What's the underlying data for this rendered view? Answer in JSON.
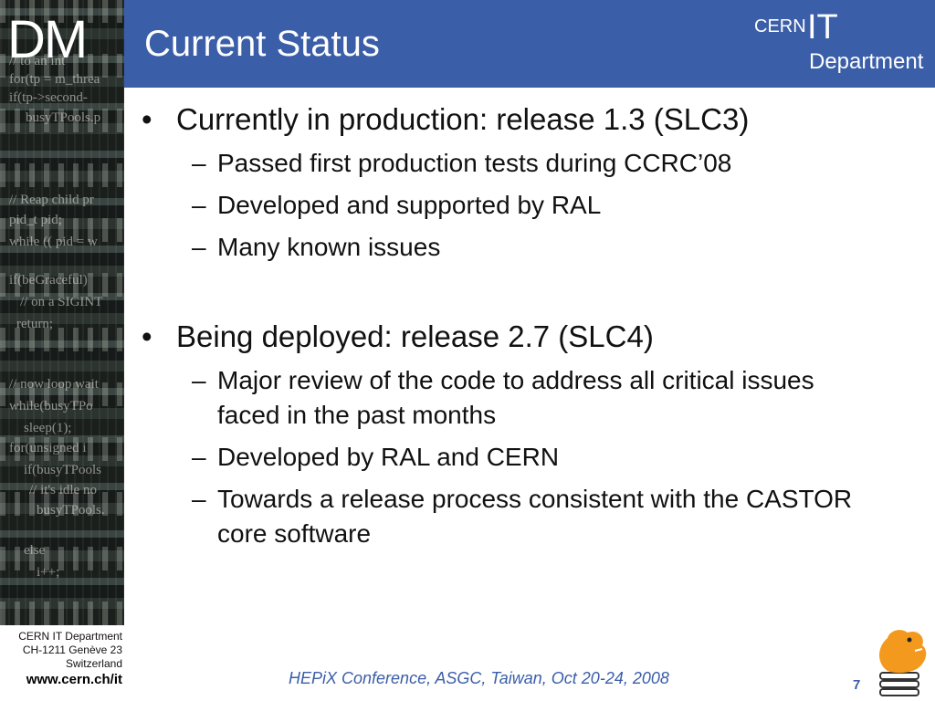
{
  "sidebar": {
    "logo": "DM",
    "code_lines": [
      "// to an int",
      "for(tp = m_threa",
      "if(tp->second-",
      "busyTPools.p",
      "// Reap child pr",
      "pid_t pid;",
      "while (( pid = w",
      "if(beGraceful)",
      "// on a SIGINT",
      "return;",
      "// now loop wait",
      "while(busyTPo",
      "sleep(1);",
      "for(unsigned i",
      "if(busyTPools",
      "// it's idle no",
      "busyTPools.",
      "else",
      "i++;"
    ]
  },
  "header": {
    "title": "Current Status",
    "cern_logo": {
      "cern": "CERN",
      "it": "IT",
      "department": "Department"
    }
  },
  "content": {
    "sections": [
      {
        "text": "Currently in production: release 1.3 (SLC3)",
        "items": [
          "Passed first production tests during CCRC’08",
          "Developed and supported by RAL",
          "Many known issues"
        ]
      },
      {
        "text": "Being deployed: release 2.7 (SLC4)",
        "items": [
          "Major review of the code to address all critical issues faced in the past months",
          "Developed by RAL and CERN",
          "Towards a release process consistent with the CASTOR core software"
        ]
      }
    ]
  },
  "footer": {
    "address_line1": "CERN IT Department",
    "address_line2": "CH-1211 Genève 23",
    "address_line3": "Switzerland",
    "url": "www.cern.ch/it",
    "conference": "HEPiX Conference, ASGC, Taiwan, Oct 20-24, 2008",
    "page_number": "7"
  },
  "colors": {
    "header_blue": "#3b5ea8",
    "castor_orange": "#f39a1e"
  }
}
